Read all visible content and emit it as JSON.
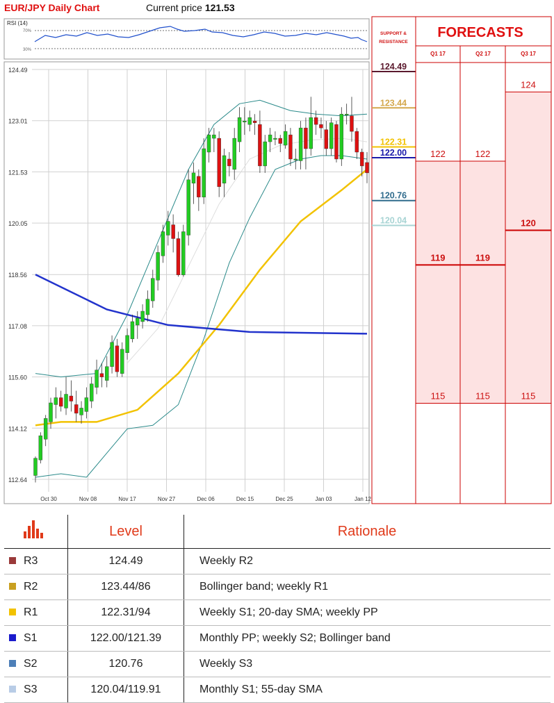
{
  "header": {
    "title": "EUR/JPY Daily Chart",
    "price_label": "Current price",
    "price_value": "121.53"
  },
  "rsi": {
    "label": "RSI (14)",
    "levels": [
      "70%",
      "30%"
    ]
  },
  "chart_data": {
    "type": "candlestick",
    "y_ticks": [
      112.64,
      114.12,
      115.6,
      117.08,
      118.56,
      120.05,
      121.53,
      123.01,
      124.49
    ],
    "ylim": [
      112.64,
      124.49
    ],
    "x_ticks": [
      "Oct 30",
      "Nov 08",
      "Nov 17",
      "Nov 27",
      "Dec 06",
      "Dec 15",
      "Dec 25",
      "Jan 03",
      "Jan 12"
    ],
    "candles": [
      [
        112.75,
        113.25,
        112.55,
        113.3
      ],
      [
        113.2,
        113.9,
        113.1,
        114.0
      ],
      [
        113.8,
        114.4,
        113.6,
        114.5
      ],
      [
        114.3,
        114.85,
        114.1,
        115.0
      ],
      [
        114.8,
        115.0,
        114.4,
        115.3
      ],
      [
        115.0,
        114.75,
        114.6,
        115.2
      ],
      [
        114.7,
        115.1,
        114.5,
        115.6
      ],
      [
        115.05,
        114.9,
        114.6,
        115.5
      ],
      [
        114.8,
        114.55,
        114.3,
        115.2
      ],
      [
        114.5,
        114.7,
        114.25,
        114.9
      ],
      [
        114.6,
        115.0,
        114.4,
        115.3
      ],
      [
        114.9,
        115.4,
        114.7,
        115.6
      ],
      [
        115.3,
        115.8,
        115.1,
        116.1
      ],
      [
        115.7,
        115.6,
        115.3,
        116.0
      ],
      [
        115.5,
        115.9,
        115.3,
        116.2
      ],
      [
        115.9,
        116.6,
        115.7,
        116.8
      ],
      [
        116.5,
        115.75,
        115.6,
        116.7
      ],
      [
        115.7,
        116.4,
        115.6,
        116.6
      ],
      [
        116.3,
        116.8,
        116.1,
        117.0
      ],
      [
        116.7,
        117.2,
        116.6,
        117.4
      ],
      [
        117.1,
        117.3,
        116.7,
        117.5
      ],
      [
        117.2,
        117.5,
        117.0,
        117.7
      ],
      [
        117.4,
        117.85,
        117.2,
        118.1
      ],
      [
        117.8,
        118.45,
        117.6,
        118.7
      ],
      [
        118.4,
        119.2,
        118.1,
        119.4
      ],
      [
        119.1,
        119.8,
        118.9,
        120.0
      ],
      [
        119.7,
        120.1,
        119.4,
        120.4
      ],
      [
        120.0,
        119.6,
        119.2,
        120.3
      ],
      [
        119.6,
        118.55,
        118.5,
        119.8
      ],
      [
        118.55,
        119.8,
        118.5,
        120.0
      ],
      [
        119.7,
        121.3,
        119.4,
        121.6
      ],
      [
        121.2,
        121.5,
        120.6,
        121.8
      ],
      [
        121.4,
        120.8,
        120.4,
        121.6
      ],
      [
        120.8,
        122.2,
        120.6,
        122.5
      ],
      [
        122.1,
        122.6,
        121.8,
        122.8
      ],
      [
        122.5,
        122.6,
        122.1,
        122.8
      ],
      [
        122.5,
        121.1,
        120.8,
        122.7
      ],
      [
        121.2,
        122.0,
        120.8,
        122.2
      ],
      [
        121.9,
        121.7,
        121.4,
        122.1
      ],
      [
        121.6,
        122.5,
        121.3,
        122.8
      ],
      [
        122.4,
        123.1,
        122.1,
        123.4
      ],
      [
        123.0,
        123.0,
        122.6,
        123.4
      ],
      [
        122.9,
        123.1,
        122.7,
        123.3
      ],
      [
        123.0,
        122.95,
        122.6,
        123.2
      ],
      [
        122.9,
        121.7,
        121.5,
        123.3
      ],
      [
        121.7,
        122.4,
        121.5,
        122.6
      ],
      [
        122.4,
        122.6,
        122.1,
        122.8
      ],
      [
        122.5,
        122.5,
        122.3,
        122.7
      ],
      [
        122.5,
        122.35,
        122.1,
        122.6
      ],
      [
        122.3,
        122.7,
        122.2,
        122.9
      ],
      [
        122.6,
        121.9,
        121.7,
        122.8
      ],
      [
        121.9,
        121.9,
        121.6,
        122.2
      ],
      [
        121.85,
        122.8,
        121.6,
        123.0
      ],
      [
        122.8,
        122.2,
        121.6,
        123.1
      ],
      [
        122.2,
        123.1,
        122.0,
        123.7
      ],
      [
        123.1,
        122.9,
        122.6,
        123.3
      ],
      [
        122.9,
        122.8,
        122.5,
        123.1
      ],
      [
        122.75,
        122.2,
        122.0,
        123.0
      ],
      [
        122.2,
        122.95,
        122.0,
        123.1
      ],
      [
        122.9,
        121.9,
        121.8,
        123.0
      ],
      [
        121.9,
        123.2,
        121.7,
        123.4
      ],
      [
        123.2,
        123.2,
        122.9,
        123.5
      ],
      [
        123.15,
        122.7,
        122.4,
        123.7
      ],
      [
        122.7,
        122.1,
        121.9,
        122.8
      ],
      [
        122.1,
        121.7,
        121.4,
        122.2
      ],
      [
        121.8,
        121.5,
        121.2,
        122.1
      ]
    ],
    "sma200_points": [
      [
        0,
        118.56
      ],
      [
        14,
        117.55
      ],
      [
        26,
        117.1
      ],
      [
        42,
        116.9
      ],
      [
        65,
        116.85
      ]
    ],
    "sma55_points": [
      [
        0,
        114.2
      ],
      [
        5,
        114.3
      ],
      [
        12,
        114.3
      ],
      [
        20,
        114.65
      ],
      [
        28,
        115.7
      ],
      [
        36,
        117.1
      ],
      [
        44,
        118.7
      ],
      [
        52,
        120.1
      ],
      [
        60,
        121.0
      ],
      [
        65,
        121.6
      ]
    ],
    "bb_upper": [
      [
        0,
        115.7
      ],
      [
        5,
        115.6
      ],
      [
        12,
        115.7
      ],
      [
        18,
        117.4
      ],
      [
        24,
        119.5
      ],
      [
        30,
        121.6
      ],
      [
        35,
        122.9
      ],
      [
        40,
        123.5
      ],
      [
        44,
        123.6
      ],
      [
        50,
        123.3
      ],
      [
        55,
        123.2
      ],
      [
        60,
        123.15
      ],
      [
        65,
        123.2
      ]
    ],
    "bb_lower": [
      [
        0,
        112.7
      ],
      [
        5,
        112.8
      ],
      [
        10,
        112.7
      ],
      [
        14,
        113.4
      ],
      [
        18,
        114.1
      ],
      [
        23,
        114.2
      ],
      [
        28,
        114.8
      ],
      [
        33,
        116.7
      ],
      [
        38,
        118.9
      ],
      [
        42,
        120.2
      ],
      [
        47,
        121.6
      ],
      [
        52,
        121.9
      ],
      [
        56,
        122.0
      ],
      [
        60,
        122.0
      ],
      [
        65,
        121.9
      ]
    ],
    "bb_mid": [
      [
        18,
        116.0
      ],
      [
        24,
        117.0
      ],
      [
        30,
        118.8
      ],
      [
        36,
        120.6
      ],
      [
        42,
        121.9
      ],
      [
        48,
        122.3
      ],
      [
        54,
        122.45
      ],
      [
        60,
        122.5
      ],
      [
        65,
        122.4
      ]
    ]
  },
  "sr": {
    "header": "SUPPORT & RESISTANCE",
    "levels": [
      {
        "value": "124.49",
        "color": "#5b1a2e"
      },
      {
        "value": "123.44",
        "color": "#d4a84d"
      },
      {
        "value": "122.31",
        "color": "#f2c200"
      },
      {
        "value": "122.00",
        "color": "#1a1aaa"
      },
      {
        "value": "120.76",
        "color": "#2f6b8c"
      },
      {
        "value": "120.04",
        "color": "#a8d4d4"
      }
    ]
  },
  "forecasts": {
    "title": "FORECASTS",
    "columns": [
      "Q1 17",
      "Q2 17",
      "Q3 17"
    ],
    "values": [
      [
        "122",
        "119",
        "115"
      ],
      [
        "122",
        "119",
        "115"
      ],
      [
        "124",
        "120",
        "115"
      ]
    ]
  },
  "table": {
    "headers": {
      "level": "Level",
      "rationale": "Rationale"
    },
    "rows": [
      {
        "name": "R3",
        "level": "124.49",
        "rationale": "Weekly R2",
        "color": "#9a3a3a"
      },
      {
        "name": "R2",
        "level": "123.44/86",
        "rationale": "Bollinger band; weekly R1",
        "color": "#c9a020"
      },
      {
        "name": "R1",
        "level": "122.31/94",
        "rationale": "Weekly S1; 20-day SMA; weekly PP",
        "color": "#f2c200"
      },
      {
        "name": "S1",
        "level": "122.00/121.39",
        "rationale": "Monthly PP; weekly S2; Bollinger band",
        "color": "#1a1acc"
      },
      {
        "name": "S2",
        "level": "120.76",
        "rationale": "Weekly S3",
        "color": "#4d7fb8"
      },
      {
        "name": "S3",
        "level": "120.04/119.91",
        "rationale": "Monthly S1; 55-day SMA",
        "color": "#b8cce6"
      }
    ]
  }
}
